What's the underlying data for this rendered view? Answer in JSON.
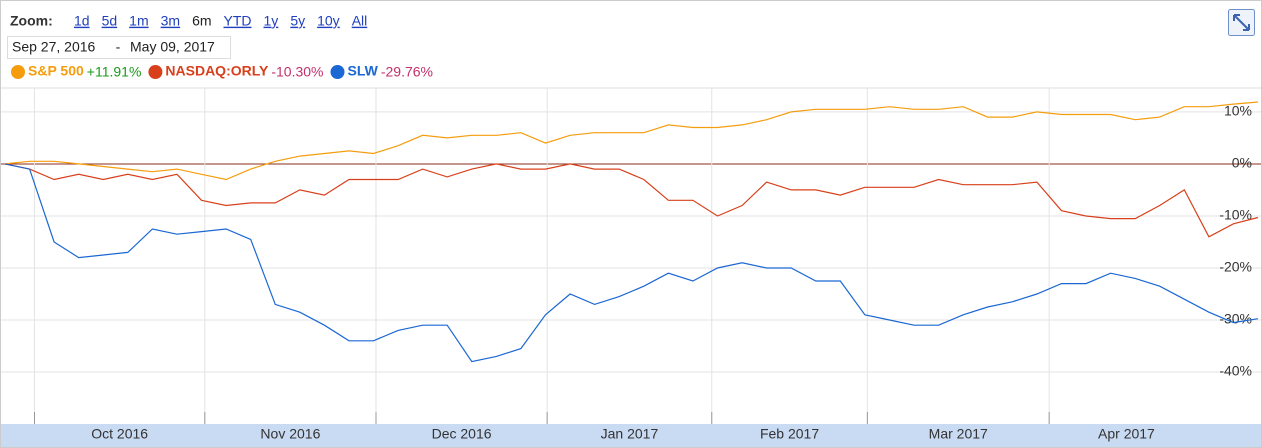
{
  "zoom": {
    "label": "Zoom:",
    "options": [
      "1d",
      "5d",
      "1m",
      "3m",
      "6m",
      "YTD",
      "1y",
      "5y",
      "10y",
      "All"
    ],
    "selected": "6m"
  },
  "date_range": {
    "from": "Sep 27, 2016",
    "separator": "-",
    "to": "May 09, 2017"
  },
  "chart_data": {
    "type": "line",
    "x": [
      0,
      3,
      6,
      9,
      12,
      15,
      18,
      21,
      24,
      27,
      30,
      33,
      36,
      39,
      42,
      45,
      48,
      51,
      54,
      57,
      60,
      63,
      66,
      69,
      72,
      75,
      78,
      81,
      84,
      87,
      90,
      93,
      96,
      99,
      102,
      105,
      108,
      111,
      114,
      117,
      120,
      123,
      126,
      129,
      132,
      135,
      138,
      141,
      144,
      147,
      150,
      153
    ],
    "xlim": [
      0,
      153
    ],
    "xticks": [
      {
        "value": 3.6,
        "label": "Oct 2016"
      },
      {
        "value": 24.4,
        "label": "Nov 2016"
      },
      {
        "value": 45.3,
        "label": "Dec 2016"
      },
      {
        "value": 66.2,
        "label": "Jan 2017"
      },
      {
        "value": 86.3,
        "label": "Feb 2017"
      },
      {
        "value": 105.3,
        "label": "Mar 2017"
      },
      {
        "value": 127.5,
        "label": "Apr 2017"
      }
    ],
    "ylim": [
      -50,
      14.6
    ],
    "yticks": [
      {
        "value": -40,
        "label": "-40%"
      },
      {
        "value": -30,
        "label": "-30%"
      },
      {
        "value": -20,
        "label": "-20%"
      },
      {
        "value": -10,
        "label": "-10%"
      },
      {
        "value": 0,
        "label": "0%"
      },
      {
        "value": 10,
        "label": "10%"
      }
    ],
    "grid": true,
    "series": [
      {
        "name": "S&P 500",
        "color": "#f59d0e",
        "change": "+11.91%",
        "change_color": "#1a9a1a",
        "values": [
          0,
          0.5,
          0.5,
          0,
          -0.5,
          -1,
          -1.5,
          -1,
          -2,
          -3,
          -1,
          0.5,
          1.5,
          2,
          2.5,
          2,
          3.5,
          5.5,
          5,
          5.5,
          5.5,
          6,
          4,
          5.5,
          6,
          6,
          6,
          7.5,
          7,
          7,
          7.5,
          8.5,
          10,
          10.5,
          10.5,
          10.5,
          11,
          10.5,
          10.5,
          11,
          9,
          9,
          10,
          9.5,
          9.5,
          9.5,
          8.5,
          9,
          11,
          11,
          11.5,
          11.91
        ]
      },
      {
        "name": "NASDAQ:ORLY",
        "color": "#d8401b",
        "change": "-10.30%",
        "change_color": "#c2306a",
        "values": [
          0,
          -1,
          -3,
          -2,
          -3,
          -2,
          -3,
          -2,
          -7,
          -8,
          -7.5,
          -7.5,
          -5,
          -6,
          -3,
          -3,
          -3,
          -1,
          -2.5,
          -1,
          0,
          -1,
          -1,
          0,
          -1,
          -1,
          -3,
          -7,
          -7,
          -10,
          -8,
          -3.5,
          -5,
          -5,
          -6,
          -4.5,
          -4.5,
          -4.5,
          -3,
          -4,
          -4,
          -4,
          -3.5,
          -9,
          -10,
          -10.5,
          -10.5,
          -8,
          -5,
          -14,
          -11.5,
          -10.3
        ]
      },
      {
        "name": "SLW",
        "color": "#1b67d3",
        "change": "-29.76%",
        "change_color": "#c2306a",
        "values": [
          0,
          -1,
          -15,
          -18,
          -17.5,
          -17,
          -12.5,
          -13.5,
          -13,
          -12.5,
          -14.5,
          -27,
          -28.5,
          -31,
          -34,
          -34,
          -32,
          -31,
          -31,
          -38,
          -37,
          -35.5,
          -29,
          -25,
          -27,
          -25.5,
          -23.5,
          -21,
          -22.5,
          -20,
          -19,
          -20,
          -20,
          -22.5,
          -22.5,
          -29,
          -30,
          -31,
          -31,
          -29,
          -27.5,
          -26.5,
          -25,
          -23,
          -23,
          -21,
          -22,
          -23.5,
          -26,
          -28.5,
          -30.5,
          -29.76
        ]
      }
    ]
  }
}
